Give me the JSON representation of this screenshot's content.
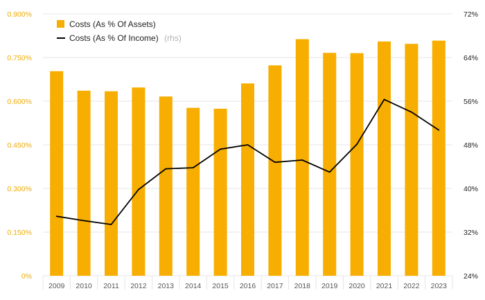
{
  "chart_data": {
    "type": "bar",
    "categories": [
      "2009",
      "2010",
      "2011",
      "2012",
      "2013",
      "2014",
      "2015",
      "2016",
      "2017",
      "2018",
      "2019",
      "2020",
      "2021",
      "2022",
      "2023"
    ],
    "series": [
      {
        "name": "Costs (As % Of Assets)",
        "type": "bar",
        "axis": "left",
        "color": "#f7ae00",
        "values": [
          0.703,
          0.636,
          0.634,
          0.647,
          0.616,
          0.577,
          0.574,
          0.661,
          0.723,
          0.813,
          0.766,
          0.765,
          0.805,
          0.797,
          0.808
        ]
      },
      {
        "name": "Costs (As % Of Income)",
        "name_suffix": "(rhs)",
        "type": "line",
        "axis": "right",
        "color": "#000000",
        "values": [
          34.9,
          34.1,
          33.4,
          39.8,
          43.6,
          43.8,
          47.2,
          48.0,
          44.8,
          45.2,
          43.0,
          48.1,
          56.3,
          54.0,
          50.7
        ]
      }
    ],
    "left_axis": {
      "min": 0,
      "max": 0.9,
      "ticks": [
        "0%",
        "0.150%",
        "0.300%",
        "0.450%",
        "0.600%",
        "0.750%",
        "0.900%"
      ],
      "tick_color": "#f0ab00"
    },
    "right_axis": {
      "min": 24,
      "max": 72,
      "ticks": [
        "24%",
        "32%",
        "40%",
        "48%",
        "56%",
        "64%",
        "72%"
      ],
      "tick_color": "#222222"
    },
    "grid": true,
    "legend_position": "top-left"
  }
}
